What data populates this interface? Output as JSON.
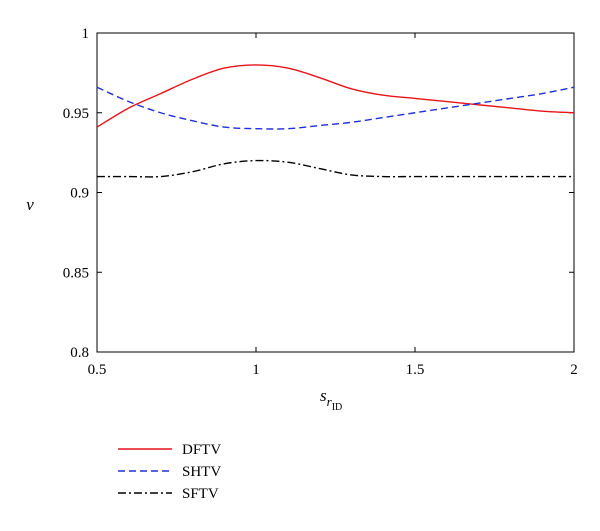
{
  "chart_data": {
    "type": "line",
    "xlabel": "s",
    "xlabel_sub": "r",
    "xlabel_subsub": "ID",
    "ylabel": "ν",
    "xlim": [
      0.5,
      2
    ],
    "ylim": [
      0.8,
      1
    ],
    "xticks": [
      0.5,
      1,
      1.5,
      2
    ],
    "xtick_labels": [
      "0.5",
      "1",
      "1.5",
      "2"
    ],
    "yticks": [
      0.8,
      0.85,
      0.9,
      0.95,
      1
    ],
    "ytick_labels": [
      "0.8",
      "0.85",
      "0.9",
      "0.95",
      "1"
    ],
    "grid": false,
    "legend_placement": "below",
    "series": [
      {
        "name": "DFTV",
        "color": "#e8141a",
        "dash": "solid",
        "x": [
          0.5,
          0.6,
          0.7,
          0.8,
          0.9,
          1.0,
          1.1,
          1.2,
          1.3,
          1.4,
          1.5,
          1.6,
          1.7,
          1.8,
          1.9,
          2.0
        ],
        "y": [
          0.941,
          0.953,
          0.962,
          0.971,
          0.978,
          0.98,
          0.978,
          0.972,
          0.965,
          0.961,
          0.959,
          0.957,
          0.955,
          0.953,
          0.951,
          0.95
        ]
      },
      {
        "name": "SHTV",
        "color": "#1f2fd6",
        "dash": "dashed",
        "x": [
          0.5,
          0.6,
          0.7,
          0.8,
          0.9,
          1.0,
          1.1,
          1.2,
          1.3,
          1.4,
          1.5,
          1.6,
          1.7,
          1.8,
          1.9,
          2.0
        ],
        "y": [
          0.966,
          0.957,
          0.95,
          0.945,
          0.941,
          0.94,
          0.94,
          0.942,
          0.944,
          0.947,
          0.95,
          0.953,
          0.956,
          0.959,
          0.962,
          0.966
        ]
      },
      {
        "name": "SFTV",
        "color": "#000000",
        "dash": "dashdot",
        "x": [
          0.5,
          0.6,
          0.7,
          0.8,
          0.9,
          1.0,
          1.1,
          1.2,
          1.3,
          1.4,
          1.5,
          1.6,
          1.7,
          1.8,
          1.9,
          2.0
        ],
        "y": [
          0.91,
          0.91,
          0.91,
          0.913,
          0.918,
          0.92,
          0.919,
          0.915,
          0.911,
          0.91,
          0.91,
          0.91,
          0.91,
          0.91,
          0.91,
          0.91
        ]
      }
    ]
  }
}
